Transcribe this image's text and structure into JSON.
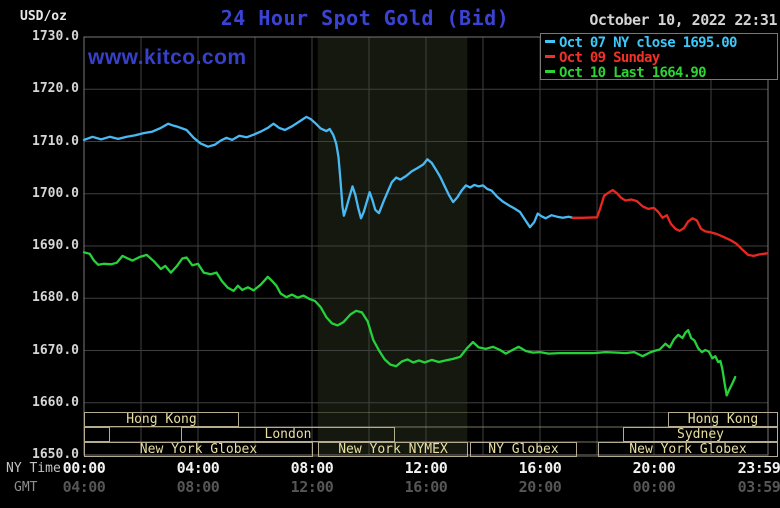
{
  "header": {
    "units_label": "USD/oz",
    "title": "24 Hour Spot Gold (Bid)",
    "timestamp": "October 10, 2022 22:31",
    "watermark": "www.kitco.com"
  },
  "legend": [
    {
      "label": "Oct 07 NY close 1695.00",
      "color": "#3cc8f8"
    },
    {
      "label": "Oct 09 Sunday",
      "color": "#f23028"
    },
    {
      "label": "Oct 10 Last 1664.90",
      "color": "#2cd434"
    }
  ],
  "axes": {
    "y_ticks": [
      "1730.0",
      "1720.0",
      "1710.0",
      "1700.0",
      "1690.0",
      "1680.0",
      "1670.0",
      "1660.0",
      "1650.0"
    ],
    "ny_row_label": "NY Time",
    "gmt_row_label": "GMT",
    "ny_ticks": [
      {
        "t": 0,
        "label": "00:00"
      },
      {
        "t": 4,
        "label": "04:00"
      },
      {
        "t": 8,
        "label": "08:00"
      },
      {
        "t": 12,
        "label": "12:00"
      },
      {
        "t": 16,
        "label": "16:00"
      },
      {
        "t": 20,
        "label": "20:00"
      },
      {
        "t": 23.983,
        "label": "23:59"
      }
    ],
    "gmt_ticks": [
      {
        "t": 0,
        "label": "04:00"
      },
      {
        "t": 4,
        "label": "08:00"
      },
      {
        "t": 8,
        "label": "12:00"
      },
      {
        "t": 12,
        "label": "16:00"
      },
      {
        "t": 16,
        "label": "20:00"
      },
      {
        "t": 20,
        "label": "00:00"
      },
      {
        "t": 23.983,
        "label": "03:59"
      }
    ]
  },
  "sessions": {
    "rows": [
      {
        "boxes": [
          {
            "label": "Hong Kong",
            "start": 0,
            "end": 5.45
          },
          {
            "label": "Hong Kong",
            "start": 20.5,
            "end": 24.35
          }
        ]
      },
      {
        "boxes": [
          {
            "label": "",
            "start": 0,
            "end": 0.9
          },
          {
            "label": "London",
            "start": 3.4,
            "end": 10.9
          },
          {
            "label": "Sydney",
            "start": 18.9,
            "end": 24.35
          }
        ]
      },
      {
        "boxes": [
          {
            "label": "New York Globex",
            "start": 0,
            "end": 8.05
          },
          {
            "label": "New York NYMEX",
            "start": 8.2,
            "end": 13.45
          },
          {
            "label": "NY Globex",
            "start": 13.55,
            "end": 17.3
          },
          {
            "label": "New York Globex",
            "start": 18.05,
            "end": 24.35
          }
        ]
      }
    ]
  },
  "colors": {
    "background": "#000000",
    "title_blue": "#3b43d4",
    "watermark_blue": "#3740c8",
    "grid": "#3f3f3f",
    "plot_border": "#787878",
    "shaded_band": "#14180e",
    "session_border": "#b6ad90",
    "session_text": "#e8dea0",
    "y_label": "#d6d6d6",
    "x_label_white": "#f2f2f2",
    "x_label_gmt": "#565656",
    "ny_row_label": "#c4c4c4",
    "gmt_row_label": "#8e8e8e",
    "date_text": "#d4d4d4",
    "units_text": "#e8e8e8"
  },
  "chart_data": {
    "type": "line",
    "title": "24 Hour Spot Gold (Bid)",
    "xlabel": "NY Time (hours)",
    "ylabel": "USD/oz",
    "xlim": [
      0,
      24
    ],
    "ylim": [
      1650,
      1730
    ],
    "x_gridline_step_hours": 2,
    "y_gridline_step": 10,
    "grid": true,
    "legend_position": "top-right",
    "shaded_band_hours": [
      8.2,
      13.45
    ],
    "series": [
      {
        "name": "Oct 07 NY close 1695.00",
        "color": "#49b9f3",
        "points": [
          [
            0,
            1710.3
          ],
          [
            0.3,
            1710.9
          ],
          [
            0.6,
            1710.4
          ],
          [
            0.9,
            1710.9
          ],
          [
            1.2,
            1710.5
          ],
          [
            1.5,
            1710.9
          ],
          [
            1.8,
            1711.2
          ],
          [
            2.1,
            1711.6
          ],
          [
            2.4,
            1711.9
          ],
          [
            2.7,
            1712.6
          ],
          [
            2.95,
            1713.4
          ],
          [
            3.1,
            1713.1
          ],
          [
            3.3,
            1712.8
          ],
          [
            3.6,
            1712.2
          ],
          [
            3.85,
            1710.7
          ],
          [
            4.1,
            1709.6
          ],
          [
            4.35,
            1709.0
          ],
          [
            4.6,
            1709.4
          ],
          [
            4.8,
            1710.2
          ],
          [
            5.0,
            1710.7
          ],
          [
            5.2,
            1710.3
          ],
          [
            5.45,
            1711.1
          ],
          [
            5.7,
            1710.8
          ],
          [
            5.95,
            1711.3
          ],
          [
            6.2,
            1711.9
          ],
          [
            6.45,
            1712.6
          ],
          [
            6.65,
            1713.4
          ],
          [
            6.85,
            1712.6
          ],
          [
            7.05,
            1712.2
          ],
          [
            7.3,
            1712.9
          ],
          [
            7.55,
            1713.8
          ],
          [
            7.8,
            1714.7
          ],
          [
            7.95,
            1714.3
          ],
          [
            8.1,
            1713.6
          ],
          [
            8.3,
            1712.5
          ],
          [
            8.5,
            1712.0
          ],
          [
            8.62,
            1712.4
          ],
          [
            8.75,
            1711.2
          ],
          [
            8.85,
            1709.6
          ],
          [
            8.93,
            1707.0
          ],
          [
            9.0,
            1702.5
          ],
          [
            9.07,
            1697.5
          ],
          [
            9.12,
            1695.8
          ],
          [
            9.2,
            1697.2
          ],
          [
            9.3,
            1699.2
          ],
          [
            9.42,
            1701.4
          ],
          [
            9.52,
            1699.8
          ],
          [
            9.62,
            1697.3
          ],
          [
            9.72,
            1695.3
          ],
          [
            9.82,
            1696.6
          ],
          [
            9.92,
            1698.4
          ],
          [
            10.02,
            1700.3
          ],
          [
            10.12,
            1698.8
          ],
          [
            10.22,
            1696.9
          ],
          [
            10.35,
            1696.3
          ],
          [
            10.5,
            1698.4
          ],
          [
            10.65,
            1700.3
          ],
          [
            10.8,
            1702.2
          ],
          [
            10.95,
            1703.1
          ],
          [
            11.1,
            1702.7
          ],
          [
            11.3,
            1703.4
          ],
          [
            11.5,
            1704.3
          ],
          [
            11.7,
            1704.9
          ],
          [
            11.9,
            1705.6
          ],
          [
            12.05,
            1706.6
          ],
          [
            12.2,
            1705.9
          ],
          [
            12.35,
            1704.6
          ],
          [
            12.5,
            1703.2
          ],
          [
            12.65,
            1701.5
          ],
          [
            12.8,
            1699.8
          ],
          [
            12.95,
            1698.4
          ],
          [
            13.1,
            1699.3
          ],
          [
            13.25,
            1700.6
          ],
          [
            13.4,
            1701.6
          ],
          [
            13.55,
            1701.2
          ],
          [
            13.7,
            1701.7
          ],
          [
            13.85,
            1701.4
          ],
          [
            14.0,
            1701.6
          ],
          [
            14.15,
            1700.9
          ],
          [
            14.3,
            1700.6
          ],
          [
            14.5,
            1699.4
          ],
          [
            14.7,
            1698.5
          ],
          [
            14.9,
            1697.8
          ],
          [
            15.1,
            1697.2
          ],
          [
            15.3,
            1696.5
          ],
          [
            15.5,
            1694.8
          ],
          [
            15.65,
            1693.6
          ],
          [
            15.8,
            1694.6
          ],
          [
            15.92,
            1696.2
          ],
          [
            16.05,
            1695.7
          ],
          [
            16.2,
            1695.3
          ],
          [
            16.4,
            1695.9
          ],
          [
            16.6,
            1695.6
          ],
          [
            16.8,
            1695.4
          ],
          [
            17.0,
            1695.6
          ],
          [
            17.15,
            1695.4
          ]
        ]
      },
      {
        "name": "Oct 09 Sunday",
        "color": "#e8281e",
        "points": [
          [
            17.15,
            1695.4
          ],
          [
            17.5,
            1695.4
          ],
          [
            18.0,
            1695.5
          ],
          [
            18.1,
            1697.0
          ],
          [
            18.25,
            1699.6
          ],
          [
            18.4,
            1700.2
          ],
          [
            18.55,
            1700.7
          ],
          [
            18.7,
            1700.1
          ],
          [
            18.85,
            1699.2
          ],
          [
            19.0,
            1698.7
          ],
          [
            19.2,
            1698.9
          ],
          [
            19.4,
            1698.6
          ],
          [
            19.6,
            1697.6
          ],
          [
            19.8,
            1697.1
          ],
          [
            20.0,
            1697.3
          ],
          [
            20.15,
            1696.5
          ],
          [
            20.3,
            1695.4
          ],
          [
            20.45,
            1695.9
          ],
          [
            20.6,
            1694.2
          ],
          [
            20.75,
            1693.3
          ],
          [
            20.9,
            1692.9
          ],
          [
            21.05,
            1693.4
          ],
          [
            21.2,
            1694.7
          ],
          [
            21.35,
            1695.3
          ],
          [
            21.5,
            1694.9
          ],
          [
            21.65,
            1693.3
          ],
          [
            21.8,
            1692.8
          ],
          [
            22.0,
            1692.6
          ],
          [
            22.2,
            1692.3
          ],
          [
            22.45,
            1691.7
          ],
          [
            22.7,
            1691.1
          ],
          [
            22.9,
            1690.4
          ],
          [
            23.1,
            1689.3
          ],
          [
            23.3,
            1688.3
          ],
          [
            23.5,
            1688.1
          ],
          [
            23.7,
            1688.4
          ],
          [
            23.98,
            1688.6
          ]
        ]
      },
      {
        "name": "Oct 10 Last 1664.90",
        "color": "#25d23a",
        "points": [
          [
            0,
            1688.8
          ],
          [
            0.2,
            1688.5
          ],
          [
            0.35,
            1687.2
          ],
          [
            0.5,
            1686.4
          ],
          [
            0.7,
            1686.6
          ],
          [
            0.95,
            1686.5
          ],
          [
            1.15,
            1686.8
          ],
          [
            1.35,
            1688.1
          ],
          [
            1.5,
            1687.7
          ],
          [
            1.7,
            1687.2
          ],
          [
            1.95,
            1687.9
          ],
          [
            2.2,
            1688.3
          ],
          [
            2.45,
            1687.1
          ],
          [
            2.7,
            1685.6
          ],
          [
            2.85,
            1686.2
          ],
          [
            3.05,
            1684.9
          ],
          [
            3.25,
            1686.1
          ],
          [
            3.45,
            1687.6
          ],
          [
            3.6,
            1687.8
          ],
          [
            3.8,
            1686.3
          ],
          [
            4.0,
            1686.6
          ],
          [
            4.2,
            1684.9
          ],
          [
            4.45,
            1684.6
          ],
          [
            4.65,
            1684.9
          ],
          [
            4.85,
            1683.2
          ],
          [
            5.05,
            1682.0
          ],
          [
            5.25,
            1681.4
          ],
          [
            5.4,
            1682.4
          ],
          [
            5.55,
            1681.6
          ],
          [
            5.75,
            1682.1
          ],
          [
            5.95,
            1681.5
          ],
          [
            6.2,
            1682.6
          ],
          [
            6.45,
            1684.1
          ],
          [
            6.6,
            1683.3
          ],
          [
            6.75,
            1682.4
          ],
          [
            6.9,
            1680.9
          ],
          [
            7.1,
            1680.2
          ],
          [
            7.3,
            1680.7
          ],
          [
            7.5,
            1680.1
          ],
          [
            7.7,
            1680.5
          ],
          [
            7.9,
            1679.9
          ],
          [
            8.1,
            1679.5
          ],
          [
            8.3,
            1678.3
          ],
          [
            8.5,
            1676.4
          ],
          [
            8.7,
            1675.2
          ],
          [
            8.9,
            1674.8
          ],
          [
            9.1,
            1675.4
          ],
          [
            9.35,
            1676.9
          ],
          [
            9.55,
            1677.6
          ],
          [
            9.75,
            1677.3
          ],
          [
            9.95,
            1675.6
          ],
          [
            10.15,
            1672.0
          ],
          [
            10.35,
            1670.0
          ],
          [
            10.55,
            1668.3
          ],
          [
            10.75,
            1667.3
          ],
          [
            10.95,
            1667.0
          ],
          [
            11.15,
            1667.9
          ],
          [
            11.35,
            1668.3
          ],
          [
            11.55,
            1667.7
          ],
          [
            11.75,
            1668.1
          ],
          [
            11.95,
            1667.7
          ],
          [
            12.2,
            1668.2
          ],
          [
            12.45,
            1667.8
          ],
          [
            12.7,
            1668.1
          ],
          [
            12.95,
            1668.4
          ],
          [
            13.2,
            1668.8
          ],
          [
            13.45,
            1670.5
          ],
          [
            13.65,
            1671.6
          ],
          [
            13.85,
            1670.6
          ],
          [
            14.1,
            1670.3
          ],
          [
            14.35,
            1670.7
          ],
          [
            14.6,
            1670.1
          ],
          [
            14.8,
            1669.4
          ],
          [
            15.0,
            1670.0
          ],
          [
            15.25,
            1670.7
          ],
          [
            15.5,
            1669.9
          ],
          [
            15.75,
            1669.6
          ],
          [
            16.0,
            1669.7
          ],
          [
            16.3,
            1669.4
          ],
          [
            16.7,
            1669.5
          ],
          [
            17.1,
            1669.5
          ],
          [
            17.5,
            1669.5
          ],
          [
            17.9,
            1669.5
          ],
          [
            18.3,
            1669.7
          ],
          [
            18.7,
            1669.6
          ],
          [
            19.0,
            1669.5
          ],
          [
            19.3,
            1669.7
          ],
          [
            19.6,
            1668.9
          ],
          [
            19.85,
            1669.6
          ],
          [
            20.0,
            1669.9
          ],
          [
            20.2,
            1670.2
          ],
          [
            20.4,
            1671.3
          ],
          [
            20.55,
            1670.6
          ],
          [
            20.7,
            1672.1
          ],
          [
            20.85,
            1673.0
          ],
          [
            21.0,
            1672.4
          ],
          [
            21.1,
            1673.4
          ],
          [
            21.2,
            1673.9
          ],
          [
            21.3,
            1672.4
          ],
          [
            21.42,
            1671.9
          ],
          [
            21.55,
            1670.4
          ],
          [
            21.68,
            1669.7
          ],
          [
            21.8,
            1670.1
          ],
          [
            21.92,
            1669.8
          ],
          [
            22.05,
            1668.5
          ],
          [
            22.15,
            1668.9
          ],
          [
            22.25,
            1667.8
          ],
          [
            22.33,
            1668.0
          ],
          [
            22.4,
            1666.4
          ],
          [
            22.48,
            1663.6
          ],
          [
            22.55,
            1661.4
          ],
          [
            22.65,
            1662.6
          ],
          [
            22.75,
            1663.7
          ],
          [
            22.85,
            1664.9
          ]
        ]
      }
    ]
  }
}
